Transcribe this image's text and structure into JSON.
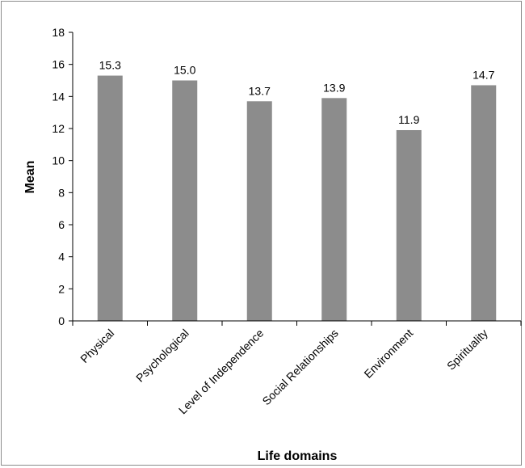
{
  "chart_data": {
    "type": "bar",
    "title": "",
    "xlabel": "Life domains",
    "ylabel": "Mean",
    "categories": [
      "Physical",
      "Psychological",
      "Level of Independence",
      "Social Relationships",
      "Environment",
      "Spirituality"
    ],
    "values": [
      15.3,
      15.0,
      13.7,
      13.9,
      11.9,
      14.7
    ],
    "data_labels": [
      "15.3",
      "15.0",
      "13.7",
      "13.9",
      "11.9",
      "14.7"
    ],
    "ylim": [
      0,
      18
    ],
    "yticks": [
      0,
      2,
      4,
      6,
      8,
      10,
      12,
      14,
      16,
      18
    ],
    "grid": false,
    "legend": "none",
    "bar_color": "#8c8c8c",
    "axis_color": "#000000"
  }
}
